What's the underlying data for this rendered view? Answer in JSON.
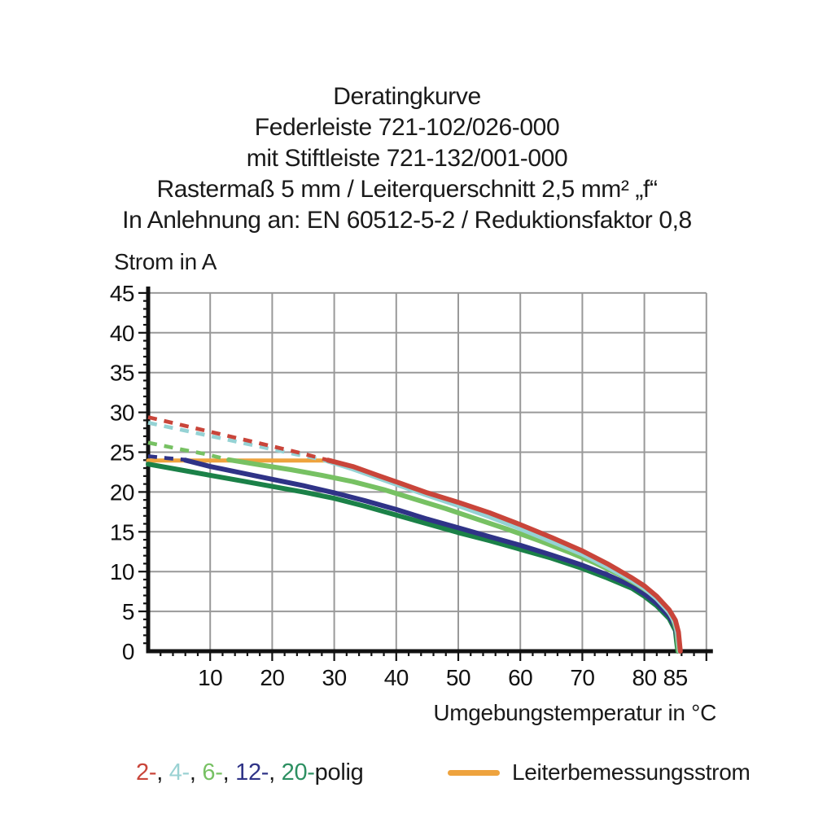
{
  "title": {
    "lines": [
      "Deratingkurve",
      "Federleiste 721-102/026-000",
      "mit Stiftleiste 721-132/001-000",
      "Rastermaß 5 mm / Leiterquerschnitt 2,5 mm² „f“",
      "In Anlehnung an: EN 60512-5-2 / Reduktionsfaktor 0,8"
    ]
  },
  "legend": {
    "poles": {
      "items": [
        {
          "label": "2-",
          "color": "#c9453a"
        },
        {
          "label": "4-",
          "color": "#9ad2d3"
        },
        {
          "label": "6-",
          "color": "#77c163"
        },
        {
          "label": "12-",
          "color": "#2f3387"
        },
        {
          "label": "20-",
          "color": "#2d9062"
        }
      ],
      "separator": ", ",
      "suffix": "polig",
      "text_color": "#1a1a1a"
    },
    "rated_current_label": "Leiterbemessungsstrom",
    "rated_current_color": "#eea33e"
  },
  "chart_data": {
    "type": "line",
    "xlabel": "Umgebungstemperatur in °C",
    "ylabel": "Strom in A",
    "xlim": [
      0,
      90
    ],
    "ylim": [
      0,
      45
    ],
    "grid": true,
    "grid_color": "#999999",
    "axis_color": "#111111",
    "x_gridlines": [
      10,
      20,
      30,
      40,
      50,
      60,
      70,
      80,
      90
    ],
    "x_major_ticks": [
      10,
      20,
      30,
      40,
      50,
      60,
      70,
      80,
      85,
      90
    ],
    "x_tick_labels": [
      "10",
      "20",
      "30",
      "40",
      "50",
      "60",
      "70",
      "80",
      "85"
    ],
    "x_minor_step": 2,
    "y_major_ticks": [
      0,
      5,
      10,
      15,
      20,
      25,
      30,
      35,
      40,
      45
    ],
    "y_minor_step": 1,
    "series": [
      {
        "name": "Leiterbemessungsstrom",
        "color": "#eea33e",
        "width": 5,
        "solid": [
          [
            0,
            23.95
          ],
          [
            29.5,
            23.95
          ]
        ]
      },
      {
        "name": "20-polig",
        "color": "#1b8148",
        "solid": [
          [
            0,
            23.5
          ],
          [
            5,
            22.8
          ],
          [
            10,
            22.1
          ],
          [
            15,
            21.4
          ],
          [
            20,
            20.7
          ],
          [
            25,
            20.0
          ],
          [
            30,
            19.2
          ],
          [
            35,
            18.2
          ],
          [
            40,
            17.1
          ],
          [
            45,
            16.0
          ],
          [
            50,
            14.9
          ],
          [
            55,
            13.9
          ],
          [
            60,
            12.8
          ],
          [
            65,
            11.7
          ],
          [
            70,
            10.4
          ],
          [
            74,
            9.2
          ],
          [
            78,
            7.9
          ],
          [
            80,
            6.9
          ],
          [
            82,
            5.7
          ],
          [
            84,
            4.1
          ],
          [
            85,
            2.6
          ],
          [
            85.2,
            1.2
          ],
          [
            85.4,
            0
          ]
        ]
      },
      {
        "name": "12-polig",
        "color": "#2f3387",
        "dashed": [
          [
            0,
            24.5
          ],
          [
            3,
            24.25
          ],
          [
            6,
            24.05
          ]
        ],
        "solid": [
          [
            6,
            24.0
          ],
          [
            10,
            23.2
          ],
          [
            15,
            22.4
          ],
          [
            20,
            21.6
          ],
          [
            25,
            20.8
          ],
          [
            30,
            19.9
          ],
          [
            35,
            18.9
          ],
          [
            40,
            17.8
          ],
          [
            45,
            16.6
          ],
          [
            50,
            15.5
          ],
          [
            55,
            14.4
          ],
          [
            60,
            13.3
          ],
          [
            65,
            12.1
          ],
          [
            70,
            10.8
          ],
          [
            74,
            9.6
          ],
          [
            78,
            8.2
          ],
          [
            80,
            7.2
          ],
          [
            82,
            6.0
          ],
          [
            84,
            4.4
          ],
          [
            85,
            3.0
          ],
          [
            85.3,
            1.5
          ],
          [
            85.5,
            0
          ]
        ]
      },
      {
        "name": "6-polig",
        "color": "#77c163",
        "dashed": [
          [
            0,
            26.2
          ],
          [
            5,
            25.4
          ],
          [
            9,
            24.8
          ],
          [
            13,
            24.05
          ]
        ],
        "solid": [
          [
            13,
            24.05
          ],
          [
            18,
            23.4
          ],
          [
            23,
            22.8
          ],
          [
            28,
            22.1
          ],
          [
            33,
            21.3
          ],
          [
            38,
            20.3
          ],
          [
            43,
            19.1
          ],
          [
            48,
            17.9
          ],
          [
            53,
            16.6
          ],
          [
            58,
            15.3
          ],
          [
            63,
            13.9
          ],
          [
            68,
            12.4
          ],
          [
            72,
            11.1
          ],
          [
            76,
            9.6
          ],
          [
            79,
            8.3
          ],
          [
            81,
            7.3
          ],
          [
            83,
            5.9
          ],
          [
            84.5,
            4.3
          ],
          [
            85.2,
            2.6
          ],
          [
            85.5,
            0
          ]
        ]
      },
      {
        "name": "4-polig",
        "color": "#95d2d4",
        "dashed": [
          [
            0,
            28.7
          ],
          [
            6,
            27.7
          ],
          [
            12,
            26.7
          ],
          [
            18,
            25.7
          ],
          [
            24,
            24.7
          ],
          [
            28.5,
            24.0
          ]
        ],
        "solid": [
          [
            28.5,
            24.0
          ],
          [
            33,
            22.9
          ],
          [
            37,
            21.8
          ],
          [
            41,
            20.7
          ],
          [
            45,
            19.6
          ],
          [
            50,
            18.3
          ],
          [
            55,
            16.9
          ],
          [
            60,
            15.4
          ],
          [
            65,
            13.8
          ],
          [
            70,
            12.2
          ],
          [
            74,
            10.6
          ],
          [
            78,
            8.9
          ],
          [
            80,
            7.9
          ],
          [
            82,
            6.6
          ],
          [
            84,
            4.9
          ],
          [
            85,
            3.5
          ],
          [
            85.4,
            2.0
          ],
          [
            85.7,
            0
          ]
        ]
      },
      {
        "name": "2-polig",
        "color": "#c9453a",
        "dashed": [
          [
            0,
            29.4
          ],
          [
            6,
            28.3
          ],
          [
            12,
            27.2
          ],
          [
            18,
            26.1
          ],
          [
            24,
            25.0
          ],
          [
            29,
            24.0
          ]
        ],
        "solid": [
          [
            29,
            24.0
          ],
          [
            33,
            23.2
          ],
          [
            37,
            22.1
          ],
          [
            41,
            21.0
          ],
          [
            45,
            19.9
          ],
          [
            50,
            18.7
          ],
          [
            55,
            17.4
          ],
          [
            60,
            15.9
          ],
          [
            65,
            14.3
          ],
          [
            70,
            12.6
          ],
          [
            74,
            11.0
          ],
          [
            78,
            9.2
          ],
          [
            80,
            8.2
          ],
          [
            82,
            6.9
          ],
          [
            84,
            5.2
          ],
          [
            85,
            3.9
          ],
          [
            85.5,
            2.4
          ],
          [
            85.8,
            0
          ]
        ]
      }
    ]
  }
}
